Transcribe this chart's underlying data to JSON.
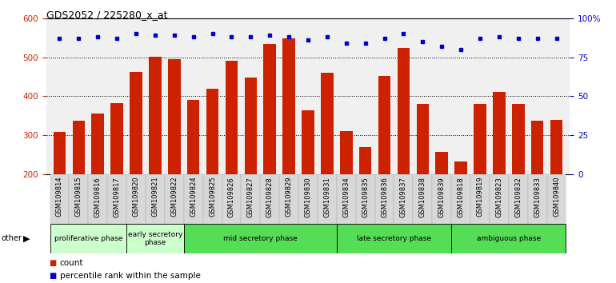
{
  "title": "GDS2052 / 225280_x_at",
  "categories": [
    "GSM109814",
    "GSM109815",
    "GSM109816",
    "GSM109817",
    "GSM109820",
    "GSM109821",
    "GSM109822",
    "GSM109824",
    "GSM109825",
    "GSM109826",
    "GSM109827",
    "GSM109828",
    "GSM109829",
    "GSM109830",
    "GSM109831",
    "GSM109834",
    "GSM109835",
    "GSM109836",
    "GSM109837",
    "GSM109838",
    "GSM109839",
    "GSM109818",
    "GSM109819",
    "GSM109823",
    "GSM109832",
    "GSM109833",
    "GSM109840"
  ],
  "counts": [
    308,
    338,
    355,
    383,
    463,
    502,
    496,
    390,
    420,
    491,
    448,
    535,
    549,
    363,
    461,
    311,
    269,
    452,
    523,
    381,
    257,
    232,
    381,
    411,
    381,
    338,
    340
  ],
  "percentile_ranks": [
    87,
    87,
    88,
    87,
    90,
    89,
    89,
    88,
    90,
    88,
    88,
    89,
    88,
    86,
    88,
    84,
    84,
    87,
    90,
    85,
    82,
    80,
    87,
    88,
    87,
    87,
    87
  ],
  "phase_bounds": [
    {
      "label": "proliferative phase",
      "start": 0,
      "end": 4,
      "color": "#ccffcc"
    },
    {
      "label": "early secretory\nphase",
      "start": 4,
      "end": 7,
      "color": "#ccffcc"
    },
    {
      "label": "mid secretory phase",
      "start": 7,
      "end": 15,
      "color": "#55dd55"
    },
    {
      "label": "late secretory phase",
      "start": 15,
      "end": 21,
      "color": "#55dd55"
    },
    {
      "label": "ambiguous phase",
      "start": 21,
      "end": 27,
      "color": "#55dd55"
    }
  ],
  "ylim_left": [
    200,
    600
  ],
  "ylim_right": [
    0,
    100
  ],
  "bar_color": "#cc2200",
  "dot_color": "#0000cc",
  "background_color": "#ffffff",
  "tick_color_left": "#cc2200",
  "tick_color_right": "#0000cc",
  "ticklabel_bg": "#d8d8d8"
}
